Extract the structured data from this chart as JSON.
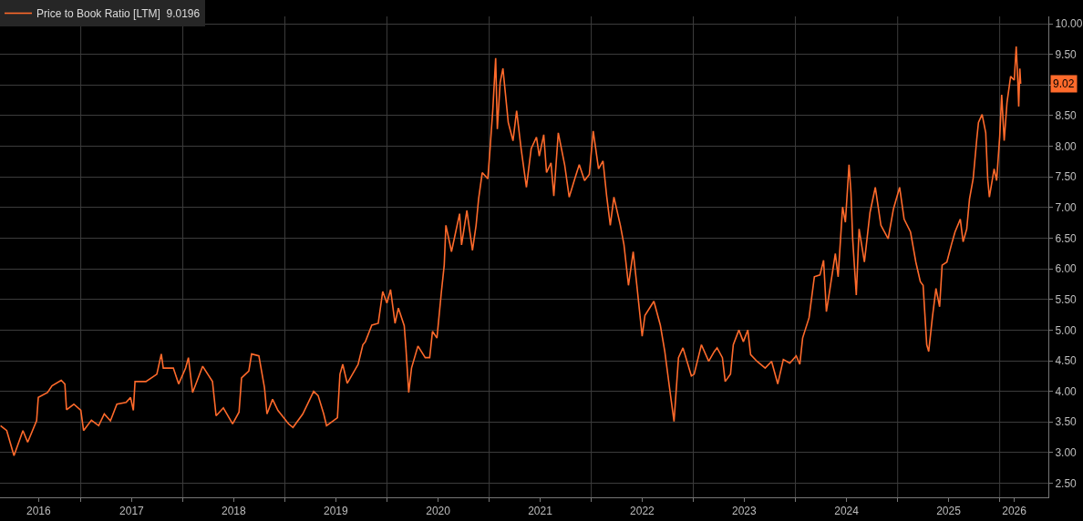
{
  "chart_data": {
    "type": "line",
    "x": [
      "2016-03-20",
      "2016-04-11",
      "2016-05-07",
      "2016-06-08",
      "2016-06-25",
      "2016-07-27",
      "2016-08-02",
      "2016-09-04",
      "2016-09-20",
      "2016-10-23",
      "2016-11-05",
      "2016-11-11",
      "2016-12-07",
      "2017-01-01",
      "2017-01-11",
      "2017-02-08",
      "2017-03-06",
      "2017-03-26",
      "2017-04-17",
      "2017-05-10",
      "2017-06-12",
      "2017-06-28",
      "2017-07-08",
      "2017-07-14",
      "2017-08-22",
      "2017-09-30",
      "2017-10-16",
      "2017-10-23",
      "2017-11-28",
      "2017-12-17",
      "2018-01-11",
      "2018-01-21",
      "2018-02-05",
      "2018-03-13",
      "2018-04-17",
      "2018-04-30",
      "2018-05-26",
      "2018-06-28",
      "2018-07-21",
      "2018-07-30",
      "2018-08-25",
      "2018-09-04",
      "2018-09-30",
      "2018-10-20",
      "2018-10-29",
      "2018-11-18",
      "2018-12-07",
      "2019-01-14",
      "2019-01-30",
      "2019-03-06",
      "2019-04-14",
      "2019-04-30",
      "2019-05-20",
      "2019-05-30",
      "2019-07-08",
      "2019-07-17",
      "2019-07-27",
      "2019-08-12",
      "2019-09-20",
      "2019-10-07",
      "2019-10-16",
      "2019-11-08",
      "2019-12-01",
      "2019-12-17",
      "2020-01-01",
      "2020-01-14",
      "2020-01-30",
      "2020-02-11",
      "2020-03-03",
      "2020-03-09",
      "2020-03-19",
      "2020-03-29",
      "2020-04-21",
      "2020-05-17",
      "2020-06-02",
      "2020-06-12",
      "2020-06-28",
      "2020-07-14",
      "2020-07-24",
      "2020-07-30",
      "2020-08-19",
      "2020-09-17",
      "2020-09-24",
      "2020-10-13",
      "2020-11-02",
      "2020-11-15",
      "2020-11-24",
      "2020-12-07",
      "2020-12-27",
      "2021-01-04",
      "2021-01-14",
      "2021-01-24",
      "2021-01-30",
      "2021-02-09",
      "2021-02-19",
      "2021-03-10",
      "2021-03-27",
      "2021-04-09",
      "2021-04-25",
      "2021-05-14",
      "2021-05-31",
      "2021-06-19",
      "2021-06-29",
      "2021-07-15",
      "2021-07-25",
      "2021-08-10",
      "2021-08-20",
      "2021-09-05",
      "2021-09-28",
      "2021-10-14",
      "2021-11-03",
      "2021-11-19",
      "2021-12-08",
      "2021-12-25",
      "2022-01-08",
      "2022-01-27",
      "2022-02-12",
      "2022-02-25",
      "2022-03-10",
      "2022-03-23",
      "2022-04-15",
      "2022-04-28",
      "2022-05-14",
      "2022-05-31",
      "2022-06-13",
      "2022-07-02",
      "2022-07-12",
      "2022-08-13",
      "2022-09-05",
      "2022-09-21",
      "2022-10-11",
      "2022-10-24",
      "2022-11-09",
      "2022-11-25",
      "2022-12-25",
      "2023-01-04",
      "2023-01-30",
      "2023-02-25",
      "2023-03-17",
      "2023-03-27",
      "2023-04-15",
      "2023-04-25",
      "2023-05-14",
      "2023-05-24",
      "2023-06-13",
      "2023-06-29",
      "2023-07-15",
      "2023-07-25",
      "2023-08-17",
      "2023-09-15",
      "2023-10-08",
      "2023-10-30",
      "2023-11-19",
      "2023-12-12",
      "2024-01-04",
      "2024-01-17",
      "2024-01-27",
      "2024-02-19",
      "2024-03-09",
      "2024-03-29",
      "2024-04-11",
      "2024-04-21",
      "2024-05-04",
      "2024-05-23",
      "2024-06-02",
      "2024-06-18",
      "2024-06-28",
      "2024-07-11",
      "2024-07-18",
      "2024-07-24",
      "2024-08-06",
      "2024-08-16",
      "2024-09-04",
      "2024-09-24",
      "2024-10-13",
      "2024-11-02",
      "2024-11-28",
      "2024-12-17",
      "2025-01-08",
      "2025-01-24",
      "2025-02-16",
      "2025-03-07",
      "2025-03-23",
      "2025-04-02",
      "2025-04-15",
      "2025-04-22",
      "2025-05-05",
      "2025-05-18",
      "2025-05-31",
      "2025-06-09",
      "2025-06-26",
      "2025-07-12",
      "2025-07-25",
      "2025-08-13",
      "2025-08-23",
      "2025-09-05",
      "2025-09-15",
      "2025-09-28",
      "2025-10-11",
      "2025-10-17",
      "2025-10-30",
      "2025-11-12",
      "2025-11-19",
      "2025-11-25",
      "2025-12-12",
      "2025-12-21",
      "2026-01-01",
      "2026-01-08",
      "2026-01-17",
      "2026-01-27",
      "2026-02-09",
      "2026-02-22",
      "2026-03-01",
      "2026-03-07",
      "2026-03-10",
      "2026-03-14",
      "2026-03-17"
    ],
    "series": [
      {
        "name": "Price to Book Ratio [LTM]  9.0196",
        "color": "#ff6a2b",
        "values": [
          3.44,
          3.36,
          2.95,
          3.36,
          3.17,
          3.52,
          3.9,
          3.98,
          4.09,
          4.18,
          4.12,
          3.7,
          3.79,
          3.69,
          3.36,
          3.53,
          3.44,
          3.63,
          3.52,
          3.79,
          3.82,
          3.9,
          3.69,
          4.16,
          4.16,
          4.28,
          4.61,
          4.38,
          4.38,
          4.12,
          4.38,
          4.55,
          3.98,
          4.41,
          4.16,
          3.6,
          3.73,
          3.47,
          3.66,
          4.22,
          4.33,
          4.61,
          4.58,
          4.06,
          3.63,
          3.87,
          3.69,
          3.47,
          3.41,
          3.63,
          4.0,
          3.93,
          3.63,
          3.44,
          3.57,
          4.28,
          4.44,
          4.13,
          4.44,
          4.76,
          4.81,
          5.08,
          5.11,
          5.63,
          5.44,
          5.66,
          5.11,
          5.36,
          5.07,
          4.71,
          3.98,
          4.38,
          4.74,
          4.55,
          4.55,
          4.98,
          4.87,
          5.63,
          6.06,
          6.71,
          6.28,
          6.9,
          6.39,
          6.95,
          6.3,
          6.71,
          7.14,
          7.57,
          7.47,
          7.96,
          8.61,
          9.44,
          8.28,
          9.04,
          9.27,
          8.39,
          8.09,
          8.58,
          7.96,
          7.33,
          7.96,
          8.15,
          7.84,
          8.19,
          7.57,
          7.73,
          7.19,
          8.22,
          7.69,
          7.17,
          7.47,
          7.7,
          7.44,
          7.54,
          8.25,
          7.63,
          7.76,
          7.19,
          6.71,
          7.17,
          6.71,
          6.39,
          5.73,
          6.28,
          5.73,
          4.9,
          5.24,
          5.47,
          5.08,
          4.65,
          3.95,
          3.51,
          4.55,
          4.71,
          4.25,
          4.28,
          4.76,
          4.49,
          4.65,
          4.71,
          4.55,
          4.16,
          4.28,
          4.76,
          5.0,
          4.81,
          5.0,
          4.6,
          4.49,
          4.38,
          4.49,
          4.12,
          4.52,
          4.46,
          4.58,
          4.44,
          4.87,
          5.2,
          5.87,
          5.9,
          6.14,
          5.3,
          5.68,
          6.25,
          5.87,
          7.01,
          6.76,
          7.7,
          7.24,
          6.49,
          5.57,
          6.65,
          6.11,
          6.92,
          7.33,
          6.71,
          6.49,
          6.98,
          7.33,
          6.81,
          6.6,
          6.11,
          5.79,
          5.73,
          4.76,
          4.65,
          5.2,
          5.68,
          5.38,
          6.06,
          6.11,
          6.39,
          6.6,
          6.81,
          6.44,
          6.65,
          7.14,
          7.47,
          8.12,
          8.39,
          8.52,
          8.22,
          7.47,
          7.17,
          7.63,
          7.44,
          8.16,
          8.84,
          8.09,
          8.71,
          9.14,
          9.08,
          9.63,
          9.04,
          8.65,
          9.27,
          9.02
        ]
      }
    ],
    "xlim": [
      "2016-03-18",
      "2026-06-24"
    ],
    "xticks": [
      {
        "value": "2016-08-03",
        "label": "2016"
      },
      {
        "value": "2017-07-02",
        "label": "2017"
      },
      {
        "value": "2018-07-02",
        "label": "2018"
      },
      {
        "value": "2019-07-02",
        "label": "2019"
      },
      {
        "value": "2020-07-02",
        "label": "2020"
      },
      {
        "value": "2021-07-02",
        "label": "2021"
      },
      {
        "value": "2022-07-02",
        "label": "2022"
      },
      {
        "value": "2023-07-02",
        "label": "2023"
      },
      {
        "value": "2024-07-02",
        "label": "2024"
      },
      {
        "value": "2025-07-02",
        "label": "2025"
      },
      {
        "value": "2026-02-22",
        "label": "2026"
      },
      {
        "value": "2017-01-01",
        "label": null
      },
      {
        "value": "2018-01-01",
        "label": null
      },
      {
        "value": "2019-01-01",
        "label": null
      },
      {
        "value": "2020-01-01",
        "label": null
      },
      {
        "value": "2021-01-01",
        "label": null
      },
      {
        "value": "2022-01-01",
        "label": null
      },
      {
        "value": "2023-01-01",
        "label": null
      },
      {
        "value": "2024-01-01",
        "label": null
      },
      {
        "value": "2025-01-01",
        "label": null
      },
      {
        "value": "2026-01-01",
        "label": null
      }
    ],
    "ylim": [
      2.27,
      10.12
    ],
    "yticks": [
      {
        "value": 2.5,
        "label": "2.50"
      },
      {
        "value": 3,
        "label": "3.00"
      },
      {
        "value": 3.5,
        "label": "3.50"
      },
      {
        "value": 4,
        "label": "4.00"
      },
      {
        "value": 4.5,
        "label": "4.50"
      },
      {
        "value": 5,
        "label": "5.00"
      },
      {
        "value": 5.5,
        "label": "5.50"
      },
      {
        "value": 6,
        "label": "6.00"
      },
      {
        "value": 6.5,
        "label": "6.50"
      },
      {
        "value": 7,
        "label": "7.00"
      },
      {
        "value": 7.5,
        "label": "7.50"
      },
      {
        "value": 8,
        "label": "8.00"
      },
      {
        "value": 8.5,
        "label": "8.50"
      },
      {
        "value": 9,
        "label": null
      },
      {
        "value": 9.5,
        "label": "9.50"
      },
      {
        "value": 10,
        "label": "10.00"
      }
    ],
    "annotations": [
      {
        "text": "9.02",
        "y": 9.02
      }
    ],
    "grid": true,
    "legend": "top left",
    "marker": "none",
    "line_style": "solid"
  }
}
